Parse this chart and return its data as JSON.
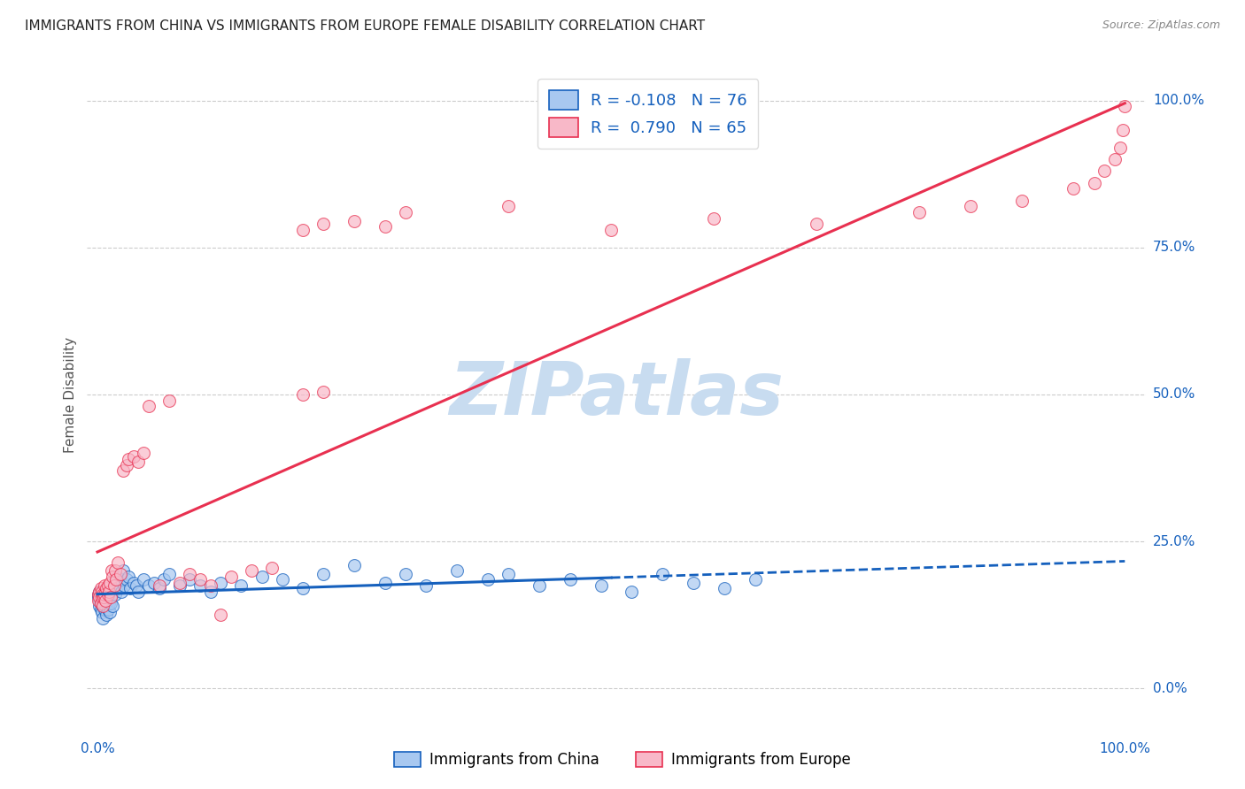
{
  "title": "IMMIGRANTS FROM CHINA VS IMMIGRANTS FROM EUROPE FEMALE DISABILITY CORRELATION CHART",
  "source": "Source: ZipAtlas.com",
  "ylabel": "Female Disability",
  "y_tick_labels": [
    "0.0%",
    "25.0%",
    "50.0%",
    "75.0%",
    "100.0%"
  ],
  "y_tick_positions": [
    0.0,
    0.25,
    0.5,
    0.75,
    1.0
  ],
  "x_tick_labels": [
    "0.0%",
    "100.0%"
  ],
  "x_tick_positions": [
    0.0,
    1.0
  ],
  "legend_china": "Immigrants from China",
  "legend_europe": "Immigrants from Europe",
  "R_china": -0.108,
  "N_china": 76,
  "R_europe": 0.79,
  "N_europe": 65,
  "color_china": "#A8C8F0",
  "color_europe": "#F8B8C8",
  "line_color_china": "#1560BD",
  "line_color_europe": "#E83050",
  "watermark_text": "ZIPatlas",
  "watermark_color": "#C8DCF0",
  "title_color": "#222222",
  "axis_label_color": "#1560BD",
  "source_color": "#888888",
  "background_color": "#FFFFFF",
  "grid_color": "#CCCCCC",
  "china_x": [
    0.001,
    0.001,
    0.002,
    0.002,
    0.002,
    0.003,
    0.003,
    0.003,
    0.004,
    0.004,
    0.004,
    0.005,
    0.005,
    0.005,
    0.006,
    0.006,
    0.007,
    0.007,
    0.008,
    0.008,
    0.009,
    0.009,
    0.01,
    0.01,
    0.011,
    0.011,
    0.012,
    0.013,
    0.014,
    0.015,
    0.016,
    0.017,
    0.018,
    0.019,
    0.02,
    0.022,
    0.023,
    0.025,
    0.026,
    0.028,
    0.03,
    0.032,
    0.035,
    0.038,
    0.04,
    0.045,
    0.05,
    0.055,
    0.06,
    0.065,
    0.07,
    0.08,
    0.09,
    0.1,
    0.11,
    0.12,
    0.14,
    0.16,
    0.18,
    0.2,
    0.22,
    0.25,
    0.28,
    0.3,
    0.32,
    0.35,
    0.38,
    0.4,
    0.43,
    0.46,
    0.49,
    0.52,
    0.55,
    0.58,
    0.61,
    0.64
  ],
  "china_y": [
    0.155,
    0.16,
    0.14,
    0.15,
    0.165,
    0.135,
    0.145,
    0.155,
    0.13,
    0.15,
    0.16,
    0.14,
    0.15,
    0.12,
    0.145,
    0.155,
    0.135,
    0.15,
    0.14,
    0.16,
    0.125,
    0.145,
    0.155,
    0.135,
    0.145,
    0.165,
    0.13,
    0.145,
    0.16,
    0.14,
    0.18,
    0.16,
    0.17,
    0.19,
    0.175,
    0.185,
    0.165,
    0.2,
    0.175,
    0.185,
    0.19,
    0.17,
    0.18,
    0.175,
    0.165,
    0.185,
    0.175,
    0.18,
    0.17,
    0.185,
    0.195,
    0.175,
    0.185,
    0.175,
    0.165,
    0.18,
    0.175,
    0.19,
    0.185,
    0.17,
    0.195,
    0.21,
    0.18,
    0.195,
    0.175,
    0.2,
    0.185,
    0.195,
    0.175,
    0.185,
    0.175,
    0.165,
    0.195,
    0.18,
    0.17,
    0.185
  ],
  "europe_x": [
    0.001,
    0.001,
    0.002,
    0.002,
    0.003,
    0.003,
    0.004,
    0.004,
    0.005,
    0.005,
    0.006,
    0.007,
    0.007,
    0.008,
    0.009,
    0.01,
    0.01,
    0.011,
    0.012,
    0.013,
    0.014,
    0.015,
    0.016,
    0.017,
    0.018,
    0.02,
    0.022,
    0.025,
    0.028,
    0.03,
    0.035,
    0.04,
    0.045,
    0.05,
    0.06,
    0.07,
    0.08,
    0.09,
    0.1,
    0.11,
    0.12,
    0.13,
    0.15,
    0.17,
    0.2,
    0.22,
    0.25,
    0.28,
    0.2,
    0.22,
    0.3,
    0.4,
    0.5,
    0.6,
    0.7,
    0.8,
    0.85,
    0.9,
    0.95,
    0.97,
    0.98,
    0.99,
    0.995,
    0.998,
    1.0
  ],
  "europe_y": [
    0.16,
    0.15,
    0.165,
    0.155,
    0.145,
    0.17,
    0.155,
    0.165,
    0.14,
    0.16,
    0.155,
    0.175,
    0.16,
    0.15,
    0.17,
    0.16,
    0.175,
    0.165,
    0.18,
    0.155,
    0.2,
    0.19,
    0.175,
    0.2,
    0.185,
    0.215,
    0.195,
    0.37,
    0.38,
    0.39,
    0.395,
    0.385,
    0.4,
    0.48,
    0.175,
    0.49,
    0.18,
    0.195,
    0.185,
    0.175,
    0.125,
    0.19,
    0.2,
    0.205,
    0.78,
    0.79,
    0.795,
    0.785,
    0.5,
    0.505,
    0.81,
    0.82,
    0.78,
    0.8,
    0.79,
    0.81,
    0.82,
    0.83,
    0.85,
    0.86,
    0.88,
    0.9,
    0.92,
    0.95,
    0.99
  ]
}
